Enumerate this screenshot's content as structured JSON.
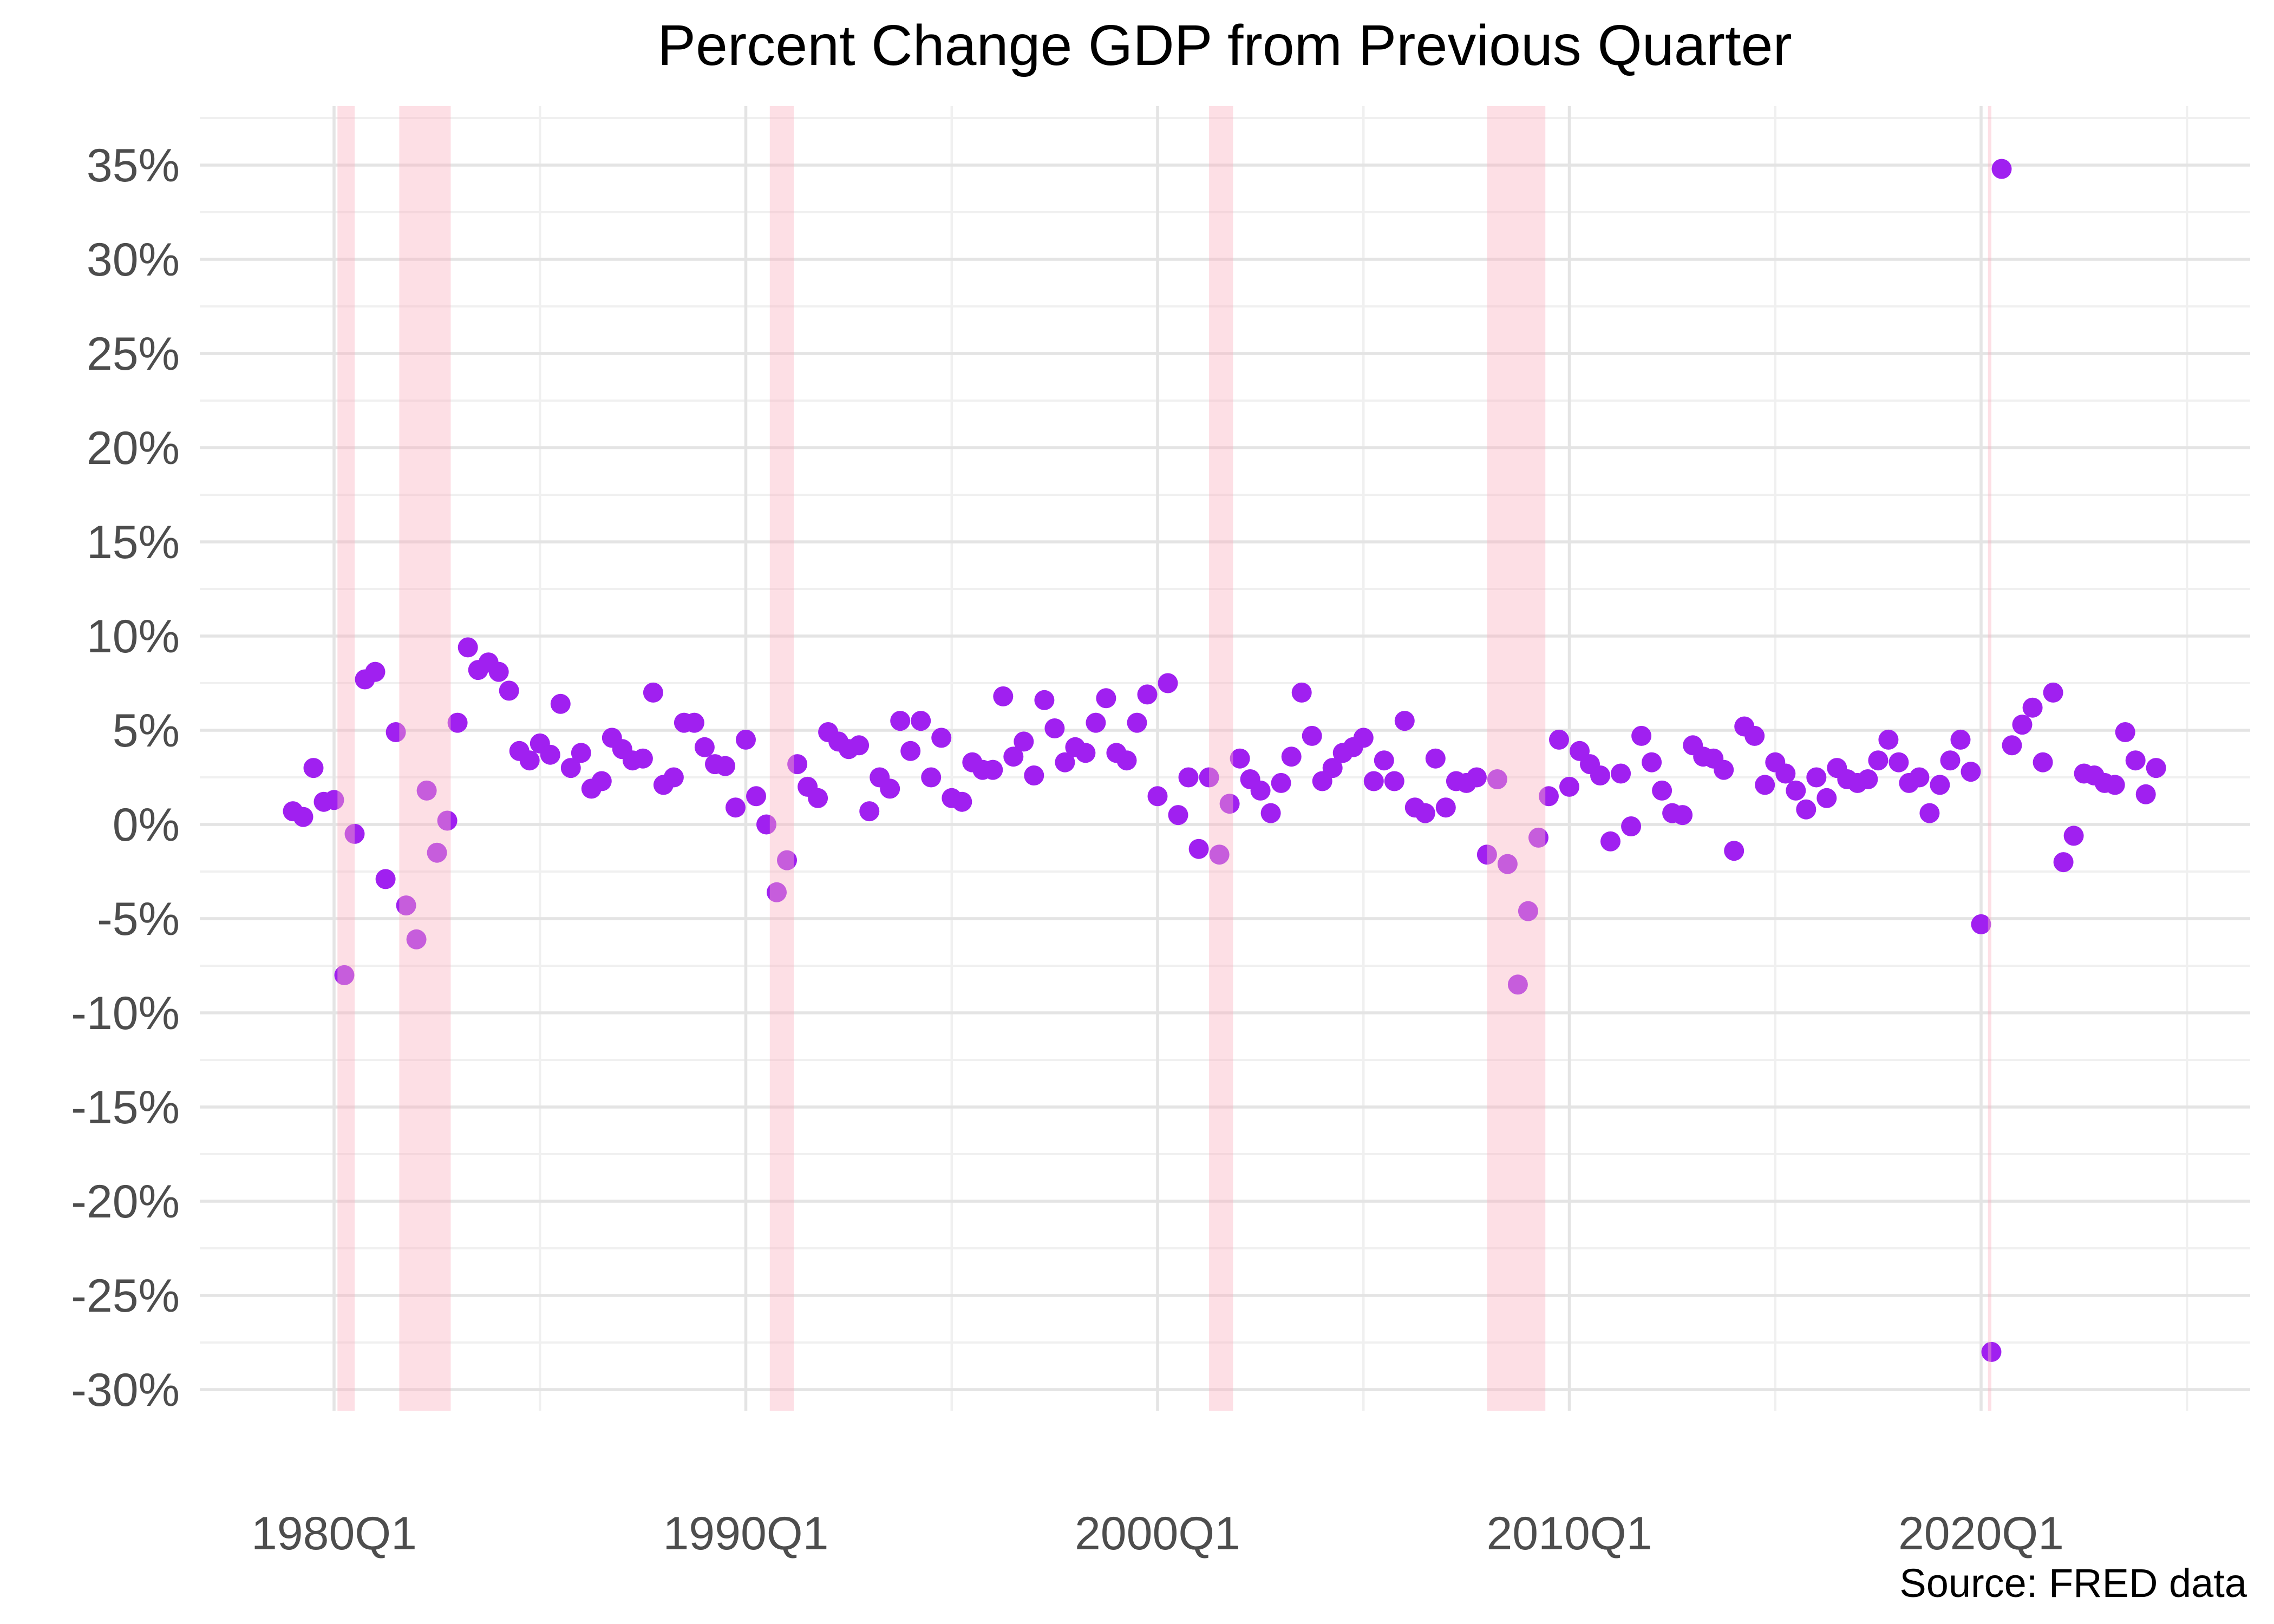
{
  "title": "Percent Change GDP from Previous Quarter",
  "source_note": "Source: FRED data",
  "colors": {
    "point": "#A020F0",
    "point_under_band": "#C65DDC",
    "recession_band": "rgba(250,178,192,0.42)",
    "grid_major": "#E4E4E4",
    "grid_minor": "#F0F0F0",
    "axis_text": "#4D4D4D",
    "title_text": "#000000",
    "background": "#FFFFFF"
  },
  "chart_data": {
    "type": "scatter",
    "title": "Percent Change GDP from Previous Quarter",
    "xlabel": "",
    "ylabel": "",
    "grid": "on",
    "legend": "none",
    "x_axis": {
      "tick_labels": [
        "1980Q1",
        "1990Q1",
        "2000Q1",
        "2010Q1",
        "2020Q1"
      ],
      "tick_years": [
        1980,
        1990,
        2000,
        2010,
        2020
      ],
      "minor_grid_years": [
        1985,
        1995,
        2005,
        2015,
        2025
      ],
      "xlim_years": [
        1976.74,
        2026.53
      ]
    },
    "y_axis": {
      "tick_labels": [
        "35%",
        "30%",
        "25%",
        "20%",
        "15%",
        "10%",
        "5%",
        "0%",
        "-5%",
        "-10%",
        "-15%",
        "-20%",
        "-25%",
        "-30%"
      ],
      "tick_values": [
        35,
        30,
        25,
        20,
        15,
        10,
        5,
        0,
        -5,
        -10,
        -15,
        -20,
        -25,
        -30
      ],
      "minor_tick_step": 2.5,
      "ylim": [
        -31.1,
        37.9
      ]
    },
    "series_start_quarter": "1979Q1",
    "series_end_quarter": "2024Q2",
    "values_by_year": {
      "1979": [
        0.7,
        0.4,
        3.0,
        1.2
      ],
      "1980": [
        1.3,
        -8.0,
        -0.5,
        7.7
      ],
      "1981": [
        8.1,
        -2.9,
        4.9,
        -4.3
      ],
      "1982": [
        -6.1,
        1.8,
        -1.5,
        0.2
      ],
      "1983": [
        5.4,
        9.4,
        8.2,
        8.6
      ],
      "1984": [
        8.1,
        7.1,
        3.9,
        3.4
      ],
      "1985": [
        4.3,
        3.7,
        6.4,
        3.0
      ],
      "1986": [
        3.8,
        1.9,
        2.3,
        4.6
      ],
      "1987": [
        4.0,
        3.4,
        3.5,
        7.0
      ],
      "1988": [
        2.1,
        2.5,
        5.4,
        5.4
      ],
      "1989": [
        4.1,
        3.2,
        3.1,
        0.9
      ],
      "1990": [
        4.5,
        1.5,
        0.0,
        -3.6
      ],
      "1991": [
        -1.9,
        3.2,
        2.0,
        1.4
      ],
      "1992": [
        4.9,
        4.4,
        4.0,
        4.2
      ],
      "1993": [
        0.7,
        2.5,
        1.9,
        5.5
      ],
      "1994": [
        3.9,
        5.5,
        2.5,
        4.6
      ],
      "1995": [
        1.4,
        1.2,
        3.3,
        2.9
      ],
      "1996": [
        2.9,
        6.8,
        3.6,
        4.4
      ],
      "1997": [
        2.6,
        6.6,
        5.1,
        3.3
      ],
      "1998": [
        4.1,
        3.8,
        5.4,
        6.7
      ],
      "1999": [
        3.8,
        3.4,
        5.4,
        6.9
      ],
      "2000": [
        1.5,
        7.5,
        0.5,
        2.5
      ],
      "2001": [
        -1.3,
        2.5,
        -1.6,
        1.1
      ],
      "2002": [
        3.5,
        2.4,
        1.8,
        0.6
      ],
      "2003": [
        2.2,
        3.6,
        7.0,
        4.7
      ],
      "2004": [
        2.3,
        3.0,
        3.8,
        4.1
      ],
      "2005": [
        4.6,
        2.3,
        3.4,
        2.3
      ],
      "2006": [
        5.5,
        0.9,
        0.6,
        3.5
      ],
      "2007": [
        0.9,
        2.3,
        2.2,
        2.5
      ],
      "2008": [
        -1.6,
        2.4,
        -2.1,
        -8.5
      ],
      "2009": [
        -4.6,
        -0.7,
        1.5,
        4.5
      ],
      "2010": [
        2.0,
        3.9,
        3.2,
        2.6
      ],
      "2011": [
        -0.9,
        2.7,
        -0.1,
        4.7
      ],
      "2012": [
        3.3,
        1.8,
        0.6,
        0.5
      ],
      "2013": [
        4.2,
        3.6,
        3.5,
        2.9
      ],
      "2014": [
        -1.4,
        5.2,
        4.7,
        2.1
      ],
      "2015": [
        3.3,
        2.7,
        1.8,
        0.8
      ],
      "2016": [
        2.5,
        1.4,
        3.0,
        2.4
      ],
      "2017": [
        2.2,
        2.4,
        3.4,
        4.5
      ],
      "2018": [
        3.3,
        2.2,
        2.5,
        0.6
      ],
      "2019": [
        2.1,
        3.4,
        4.5,
        2.8
      ],
      "2020": [
        -5.3,
        -28.0,
        34.8,
        4.2
      ],
      "2021": [
        5.3,
        6.2,
        3.3,
        7.0
      ],
      "2022": [
        -2.0,
        -0.6,
        2.7,
        2.6
      ],
      "2023": [
        2.2,
        2.1,
        4.9,
        3.4
      ],
      "2024": [
        1.6,
        3.0
      ]
    },
    "recession_bands": [
      {
        "start": 1980.083,
        "end": 1980.5
      },
      {
        "start": 1981.583,
        "end": 1982.833
      },
      {
        "start": 1990.583,
        "end": 1991.167
      },
      {
        "start": 2001.25,
        "end": 2001.833
      },
      {
        "start": 2008.0,
        "end": 2009.417
      },
      {
        "start": 2020.167,
        "end": 2020.25
      }
    ]
  }
}
